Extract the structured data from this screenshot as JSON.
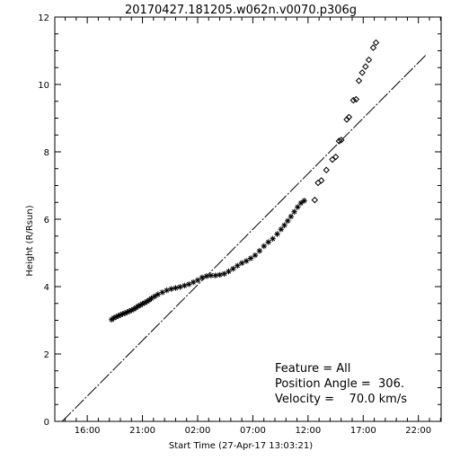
{
  "chart_data": {
    "type": "scatter",
    "title": "20170427.181205.w062n.v0070.p306g",
    "xlabel": "Start Time (27-Apr-17 13:03:21)",
    "ylabel": "Height (R/Rsun)",
    "x_unit": "hours since 27-Apr-17 13:03:21",
    "xlim": [
      0,
      35
    ],
    "ylim": [
      0,
      12
    ],
    "x_ticks": [
      {
        "value": 2.9417,
        "label": "16:00"
      },
      {
        "value": 7.9417,
        "label": "21:00"
      },
      {
        "value": 12.9417,
        "label": "02:00"
      },
      {
        "value": 17.9417,
        "label": "07:00"
      },
      {
        "value": 22.9417,
        "label": "12:00"
      },
      {
        "value": 27.9417,
        "label": "17:00"
      },
      {
        "value": 32.9417,
        "label": "22:00"
      }
    ],
    "y_ticks": [
      0,
      2,
      4,
      6,
      8,
      10,
      12
    ],
    "annotations": [
      "Feature = All",
      "Position Angle =  306.",
      "Velocity =    70.0 km/s"
    ],
    "fit_line": {
      "name": "linear fit",
      "x": [
        0.67,
        33.7
      ],
      "y": [
        0.0,
        10.9
      ],
      "style": "dash-dot"
    },
    "series": [
      {
        "marker": "asterisk",
        "points": [
          [
            5.15,
            3.02
          ],
          [
            5.35,
            3.07
          ],
          [
            5.55,
            3.1
          ],
          [
            5.75,
            3.13
          ],
          [
            5.95,
            3.16
          ],
          [
            6.15,
            3.19
          ],
          [
            6.35,
            3.21
          ],
          [
            6.55,
            3.24
          ],
          [
            6.75,
            3.27
          ],
          [
            6.95,
            3.3
          ],
          [
            7.15,
            3.33
          ],
          [
            7.35,
            3.37
          ],
          [
            7.55,
            3.42
          ],
          [
            7.75,
            3.45
          ],
          [
            7.95,
            3.49
          ],
          [
            8.15,
            3.52
          ],
          [
            8.35,
            3.56
          ],
          [
            8.55,
            3.6
          ],
          [
            8.75,
            3.65
          ],
          [
            9.05,
            3.71
          ],
          [
            9.35,
            3.77
          ],
          [
            9.75,
            3.83
          ],
          [
            10.15,
            3.89
          ],
          [
            10.55,
            3.93
          ],
          [
            10.95,
            3.96
          ],
          [
            11.35,
            3.99
          ],
          [
            11.75,
            4.03
          ],
          [
            12.15,
            4.07
          ],
          [
            12.55,
            4.13
          ],
          [
            12.95,
            4.19
          ],
          [
            13.35,
            4.27
          ],
          [
            13.75,
            4.31
          ],
          [
            14.15,
            4.33
          ],
          [
            14.55,
            4.33
          ],
          [
            14.95,
            4.35
          ],
          [
            15.35,
            4.38
          ],
          [
            15.75,
            4.45
          ],
          [
            16.15,
            4.53
          ],
          [
            16.55,
            4.62
          ],
          [
            16.95,
            4.7
          ],
          [
            17.35,
            4.76
          ],
          [
            17.75,
            4.84
          ],
          [
            18.15,
            4.93
          ],
          [
            18.55,
            5.06
          ],
          [
            18.95,
            5.2
          ],
          [
            19.35,
            5.32
          ],
          [
            19.75,
            5.42
          ],
          [
            20.15,
            5.56
          ],
          [
            20.5,
            5.7
          ],
          [
            20.8,
            5.82
          ],
          [
            21.1,
            5.95
          ],
          [
            21.4,
            6.08
          ],
          [
            21.7,
            6.22
          ],
          [
            22.0,
            6.36
          ],
          [
            22.3,
            6.48
          ],
          [
            22.6,
            6.55
          ]
        ]
      },
      {
        "marker": "diamond",
        "points": [
          [
            23.55,
            6.57
          ],
          [
            23.85,
            7.08
          ],
          [
            24.15,
            7.15
          ],
          [
            24.6,
            7.46
          ],
          [
            25.15,
            7.77
          ],
          [
            25.45,
            7.85
          ],
          [
            25.75,
            8.32
          ],
          [
            25.95,
            8.35
          ],
          [
            26.45,
            8.96
          ],
          [
            26.65,
            9.03
          ],
          [
            27.05,
            9.53
          ],
          [
            27.3,
            9.56
          ],
          [
            27.55,
            10.11
          ],
          [
            27.85,
            10.35
          ],
          [
            28.15,
            10.53
          ],
          [
            28.45,
            10.73
          ],
          [
            28.85,
            11.09
          ],
          [
            29.1,
            11.24
          ]
        ]
      }
    ]
  }
}
